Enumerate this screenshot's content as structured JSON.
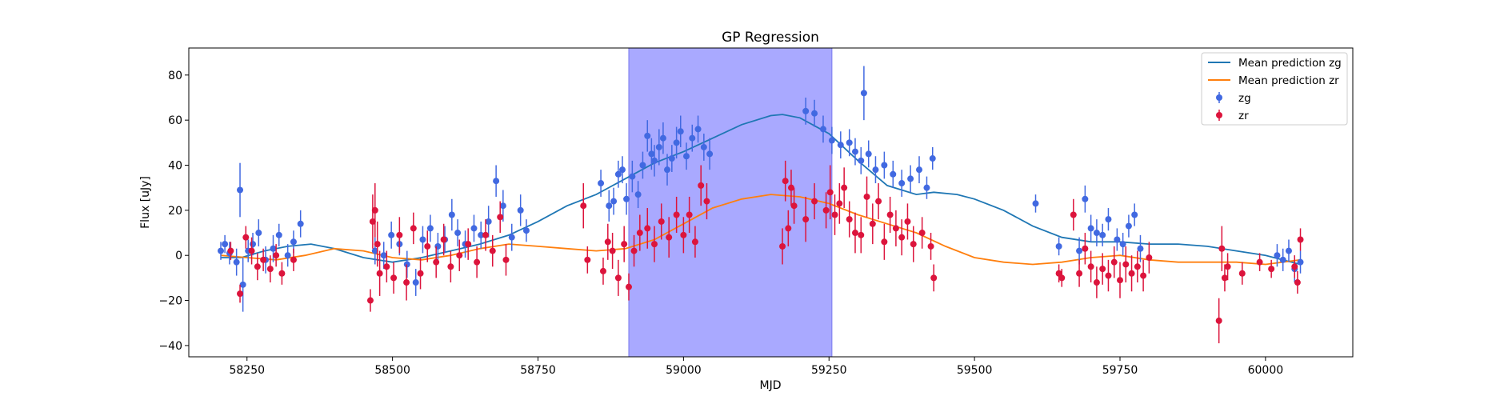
{
  "chart_data": {
    "type": "scatter",
    "title": "GP Regression",
    "xlabel": "MJD",
    "ylabel": "Flux [uJy]",
    "xlim": [
      58150,
      60150
    ],
    "ylim": [
      -45,
      92
    ],
    "xticks": [
      58250,
      58500,
      58750,
      59000,
      59250,
      59500,
      59750,
      60000
    ],
    "yticks": [
      -40,
      -20,
      0,
      20,
      40,
      60,
      80
    ],
    "grid": false,
    "legend_position": "top-right",
    "highlight_span": {
      "x0": 58906,
      "x1": 59255,
      "color": "#a9a9ff"
    },
    "legend": [
      {
        "label": "Mean prediction zg",
        "kind": "line",
        "color": "#1f77b4"
      },
      {
        "label": "Mean prediction zr",
        "kind": "line",
        "color": "#ff7f0e"
      },
      {
        "label": "zg",
        "kind": "errorbar",
        "color": "#4169e1"
      },
      {
        "label": "zr",
        "kind": "errorbar",
        "color": "#dc143c"
      }
    ],
    "series": [
      {
        "name": "Mean prediction zg",
        "kind": "line",
        "color": "#1f77b4",
        "x": [
          58205,
          58240,
          58280,
          58320,
          58360,
          58400,
          58450,
          58500,
          58550,
          58600,
          58650,
          58700,
          58750,
          58800,
          58850,
          58900,
          58950,
          59000,
          59050,
          59100,
          59150,
          59170,
          59200,
          59250,
          59300,
          59350,
          59400,
          59430,
          59470,
          59500,
          59550,
          59600,
          59650,
          59700,
          59750,
          59800,
          59850,
          59900,
          59950,
          60000,
          60060
        ],
        "y": [
          -1,
          -1,
          2,
          4,
          5,
          3,
          -1,
          -3,
          -1,
          2,
          5,
          9,
          15,
          22,
          27,
          34,
          41,
          46,
          52,
          58,
          62,
          62.5,
          61,
          54,
          42,
          31,
          27,
          28,
          27,
          25,
          20,
          13,
          8,
          6,
          6,
          5,
          5,
          4,
          2,
          0,
          -4
        ]
      },
      {
        "name": "Mean prediction zr",
        "kind": "line",
        "color": "#ff7f0e",
        "x": [
          58205,
          58250,
          58300,
          58350,
          58400,
          58450,
          58500,
          58550,
          58600,
          58650,
          58700,
          58750,
          58800,
          58850,
          58900,
          58950,
          59000,
          59050,
          59100,
          59150,
          59200,
          59250,
          59300,
          59350,
          59400,
          59450,
          59500,
          59550,
          59600,
          59650,
          59700,
          59750,
          59800,
          59850,
          59900,
          59950,
          60000,
          60060
        ],
        "y": [
          0,
          -1,
          -2,
          0,
          3,
          2,
          -1,
          -2,
          0,
          3,
          5,
          4,
          3,
          2,
          3,
          7,
          14,
          21,
          25,
          27,
          26,
          23,
          18,
          14,
          10,
          4,
          -1,
          -3,
          -4,
          -3,
          -1,
          0,
          -2,
          -3,
          -3,
          -3,
          -4,
          -2
        ]
      },
      {
        "name": "zg",
        "kind": "errorbar",
        "color": "#4169e1",
        "x": [
          58205,
          58212,
          58220,
          58232,
          58238,
          58243,
          58252,
          58260,
          58270,
          58282,
          58295,
          58305,
          58320,
          58330,
          58342,
          58470,
          58485,
          58498,
          58512,
          58525,
          58540,
          58552,
          58565,
          58578,
          58590,
          58602,
          58612,
          58625,
          58640,
          58652,
          58665,
          58678,
          58690,
          58705,
          58720,
          58730,
          58858,
          58872,
          58880,
          58888,
          58895,
          58902,
          58912,
          58922,
          58930,
          58938,
          58945,
          58950,
          58958,
          58965,
          58972,
          58980,
          58988,
          58995,
          59005,
          59015,
          59025,
          59035,
          59045,
          59210,
          59225,
          59240,
          59255,
          59270,
          59285,
          59295,
          59305,
          59310,
          59318,
          59330,
          59345,
          59360,
          59375,
          59390,
          59405,
          59418,
          59428,
          59605,
          59645,
          59680,
          59690,
          59700,
          59710,
          59720,
          59730,
          59745,
          59755,
          59765,
          59775,
          59785,
          60020,
          60030,
          60040,
          60050,
          60060
        ],
        "y": [
          2,
          5,
          1,
          -3,
          29,
          -13,
          2,
          5,
          10,
          -2,
          3,
          9,
          0,
          6,
          14,
          2,
          0,
          9,
          5,
          -4,
          -12,
          7,
          12,
          4,
          7,
          18,
          10,
          5,
          12,
          9,
          15,
          33,
          22,
          8,
          20,
          11,
          32,
          22,
          24,
          36,
          38,
          25,
          35,
          27,
          40,
          53,
          45,
          42,
          48,
          52,
          38,
          43,
          50,
          55,
          44,
          52,
          56,
          48,
          45,
          64,
          63,
          56,
          51,
          49,
          50,
          46,
          42,
          72,
          45,
          38,
          40,
          36,
          32,
          34,
          38,
          30,
          43,
          23,
          4,
          2,
          25,
          12,
          10,
          9,
          16,
          7,
          5,
          13,
          18,
          3,
          0,
          -2,
          2,
          -6,
          -3
        ],
        "err": [
          4,
          4,
          5,
          6,
          12,
          12,
          5,
          5,
          6,
          6,
          6,
          5,
          5,
          5,
          6,
          6,
          6,
          6,
          5,
          6,
          6,
          6,
          6,
          6,
          6,
          7,
          6,
          6,
          6,
          6,
          7,
          7,
          7,
          6,
          7,
          5,
          6,
          7,
          6,
          6,
          6,
          7,
          7,
          6,
          6,
          7,
          7,
          7,
          8,
          7,
          7,
          6,
          7,
          7,
          6,
          6,
          6,
          6,
          7,
          6,
          6,
          6,
          6,
          6,
          6,
          6,
          6,
          12,
          6,
          6,
          6,
          6,
          6,
          6,
          6,
          5,
          5,
          4,
          4,
          6,
          6,
          6,
          6,
          5,
          5,
          5,
          5,
          5,
          5,
          6,
          5,
          5,
          5,
          6,
          5
        ]
      },
      {
        "name": "zr",
        "kind": "errorbar",
        "color": "#dc143c",
        "x": [
          58222,
          58238,
          58248,
          58258,
          58268,
          58278,
          58290,
          58300,
          58310,
          58330,
          58462,
          58466,
          58470,
          58474,
          58478,
          58490,
          58502,
          58512,
          58524,
          58536,
          58548,
          58560,
          58575,
          58588,
          58600,
          58615,
          58630,
          58645,
          58660,
          58672,
          58685,
          58695,
          58828,
          58835,
          58862,
          58870,
          58878,
          58888,
          58898,
          58906,
          58915,
          58925,
          58938,
          58950,
          58962,
          58975,
          58988,
          59000,
          59010,
          59020,
          59030,
          59040,
          59170,
          59175,
          59180,
          59185,
          59190,
          59210,
          59225,
          59245,
          59252,
          59260,
          59268,
          59276,
          59285,
          59295,
          59305,
          59315,
          59325,
          59335,
          59345,
          59355,
          59365,
          59375,
          59385,
          59395,
          59410,
          59425,
          59430,
          59645,
          59650,
          59670,
          59680,
          59690,
          59700,
          59710,
          59720,
          59730,
          59740,
          59750,
          59760,
          59770,
          59780,
          59790,
          59800,
          59920,
          59925,
          59930,
          59935,
          59960,
          59990,
          60010,
          60050,
          60055,
          60060
        ],
        "y": [
          2,
          -17,
          8,
          2,
          -5,
          -2,
          -6,
          0,
          -8,
          -2,
          -20,
          15,
          20,
          5,
          -8,
          -5,
          -10,
          9,
          -12,
          12,
          -8,
          4,
          -3,
          7,
          -5,
          0,
          5,
          -3,
          9,
          2,
          17,
          -2,
          22,
          -2,
          -7,
          6,
          2,
          -10,
          5,
          -14,
          2,
          10,
          12,
          5,
          15,
          8,
          18,
          9,
          18,
          6,
          31,
          24,
          4,
          33,
          12,
          30,
          22,
          16,
          24,
          20,
          28,
          18,
          23,
          30,
          16,
          10,
          9,
          26,
          14,
          24,
          6,
          18,
          12,
          8,
          15,
          5,
          10,
          4,
          -10,
          -8,
          -10,
          18,
          -8,
          3,
          -5,
          -12,
          -6,
          -9,
          -3,
          -11,
          -4,
          -8,
          -5,
          -9,
          -1,
          -29,
          3,
          -10,
          -5,
          -8,
          -3,
          -6,
          -5,
          -12,
          7
        ],
        "err": [
          4,
          4,
          5,
          6,
          6,
          5,
          6,
          5,
          5,
          5,
          5,
          12,
          12,
          10,
          10,
          7,
          7,
          8,
          8,
          7,
          7,
          7,
          7,
          7,
          7,
          7,
          7,
          7,
          7,
          7,
          7,
          7,
          10,
          6,
          6,
          8,
          8,
          8,
          8,
          6,
          7,
          8,
          9,
          8,
          8,
          9,
          8,
          8,
          8,
          7,
          9,
          8,
          8,
          9,
          8,
          8,
          8,
          10,
          8,
          8,
          12,
          9,
          9,
          9,
          8,
          9,
          8,
          9,
          9,
          8,
          8,
          8,
          8,
          8,
          8,
          8,
          7,
          6,
          6,
          4,
          4,
          7,
          6,
          7,
          7,
          7,
          7,
          7,
          7,
          8,
          8,
          8,
          7,
          7,
          7,
          10,
          10,
          6,
          6,
          5,
          4,
          4,
          5,
          5,
          5
        ]
      }
    ]
  }
}
